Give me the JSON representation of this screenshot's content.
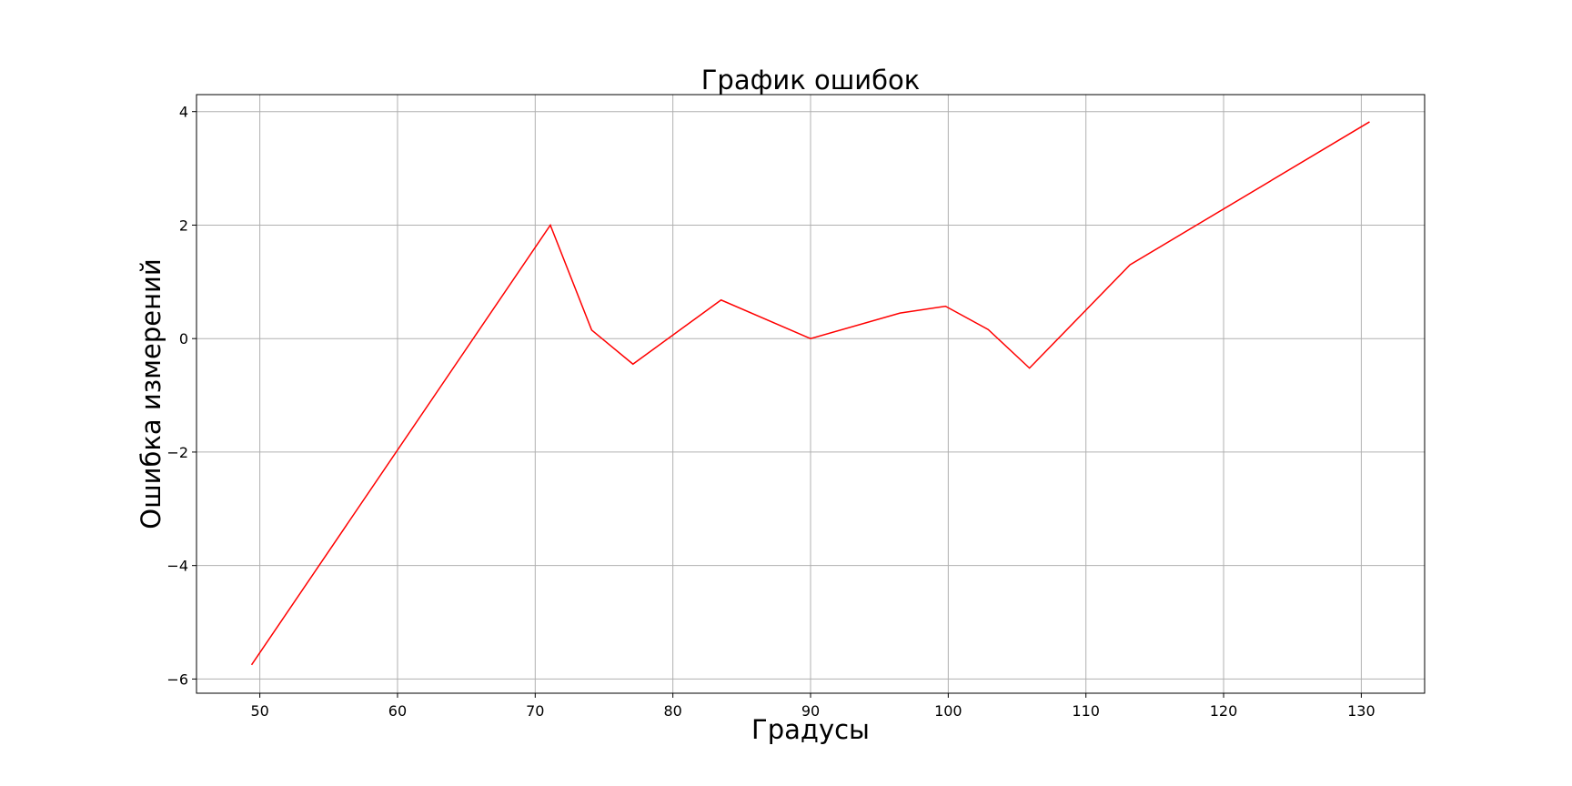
{
  "chart_data": {
    "type": "line",
    "title": "График ошибок",
    "xlabel": "Градусы",
    "ylabel": "Ошибка измерений",
    "xlim": [
      45.4,
      134.6
    ],
    "ylim": [
      -6.25,
      4.3
    ],
    "xticks": [
      50,
      60,
      70,
      80,
      90,
      100,
      110,
      120,
      130
    ],
    "xtick_labels": [
      "50",
      "60",
      "70",
      "80",
      "90",
      "100",
      "110",
      "120",
      "130"
    ],
    "yticks": [
      -6,
      -4,
      -2,
      0,
      2,
      4
    ],
    "ytick_labels": [
      "−6",
      "−4",
      "−2",
      "0",
      "2",
      "4"
    ],
    "grid": true,
    "series": [
      {
        "color": "#ff0000",
        "x": [
          49.4,
          71.1,
          74.1,
          77.1,
          83.5,
          90.0,
          96.5,
          99.8,
          102.9,
          105.9,
          113.2,
          130.6
        ],
        "y": [
          -5.75,
          2.0,
          0.15,
          -0.45,
          0.68,
          0.0,
          0.45,
          0.57,
          0.16,
          -0.52,
          1.3,
          3.82
        ]
      }
    ]
  }
}
